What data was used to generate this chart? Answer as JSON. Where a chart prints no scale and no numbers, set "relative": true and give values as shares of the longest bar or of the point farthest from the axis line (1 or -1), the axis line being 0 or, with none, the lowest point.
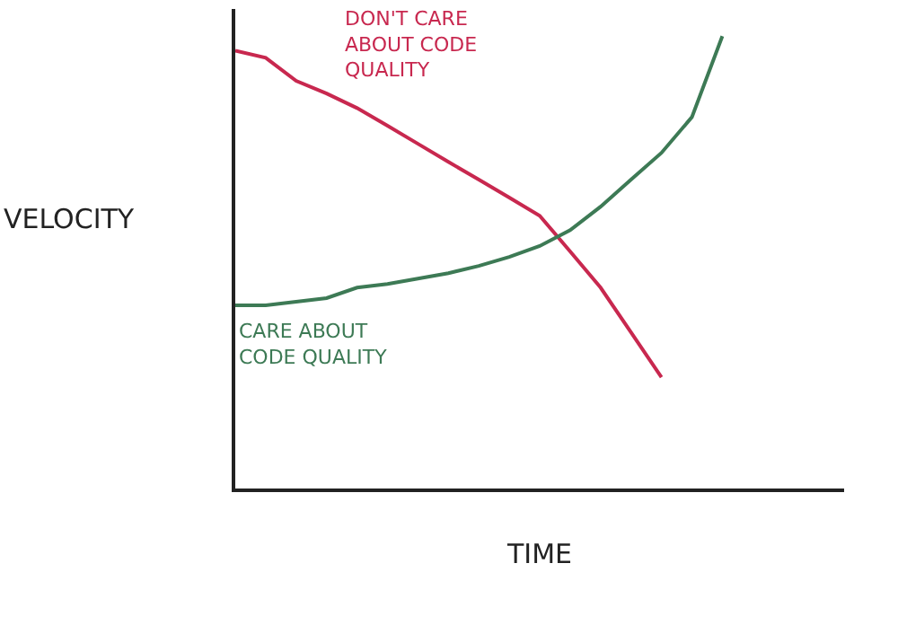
{
  "chart_data": {
    "type": "line",
    "relative": true,
    "xlabel": "TIME",
    "ylabel": "VELOCITY",
    "legend": false,
    "marker": "none",
    "line_style": "solid",
    "tick_labels": false,
    "categories": [
      null,
      null,
      null,
      null,
      null,
      null,
      null,
      null,
      null,
      null,
      null,
      null,
      null,
      null,
      null,
      null,
      null,
      null,
      null,
      null,
      null
    ],
    "series": [
      {
        "name": "DON'T CARE ABOUT CODE QUALITY",
        "color": "#c8284f",
        "values": [
          0.968,
          0.952,
          0.901,
          0.873,
          0.841,
          0.802,
          0.762,
          0.722,
          0.683,
          0.643,
          0.603,
          0.524,
          0.444,
          0.345,
          0.246,
          null,
          null,
          null,
          null,
          null,
          null
        ]
      },
      {
        "name": "CARE ABOUT CODE QUALITY",
        "color": "#3d7a55",
        "values": [
          0.405,
          0.405,
          0.413,
          0.421,
          0.444,
          0.452,
          0.464,
          0.476,
          0.492,
          0.512,
          0.536,
          0.571,
          0.623,
          0.683,
          0.742,
          0.821,
          1,
          null,
          null,
          null,
          null
        ]
      }
    ]
  }
}
